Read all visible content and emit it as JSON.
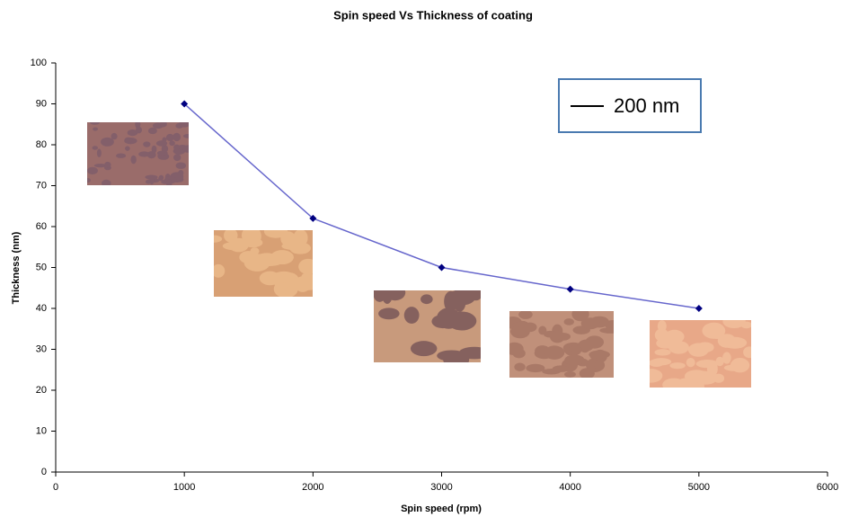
{
  "chart_data": {
    "type": "line",
    "title": "Spin speed Vs Thickness of coating",
    "x_label": "Spin speed (rpm)",
    "y_label": "Thickness (nm)",
    "x": [
      1000,
      2000,
      3000,
      4000,
      5000
    ],
    "series": [
      {
        "name": "Thickness",
        "color": "#6666cc",
        "marker_color": "#000080",
        "values": [
          90,
          62,
          50,
          44.7,
          40
        ]
      }
    ],
    "xlim": [
      0,
      6000
    ],
    "xticks": [
      0,
      1000,
      2000,
      3000,
      4000,
      5000,
      6000
    ],
    "ylim": [
      0,
      100
    ],
    "yticks": [
      0,
      10,
      20,
      30,
      40,
      50,
      60,
      70,
      80,
      90,
      100
    ],
    "grid": false,
    "annotation": "200 nm"
  }
}
